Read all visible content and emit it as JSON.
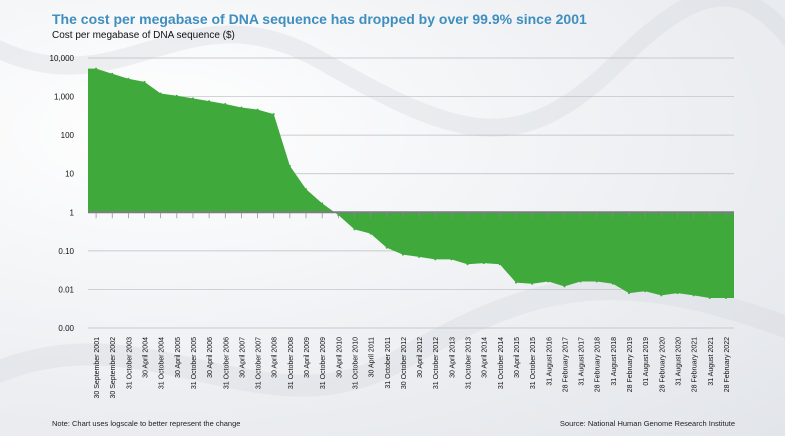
{
  "chart_data": {
    "type": "area",
    "title": "The cost per megabase of DNA sequence has dropped by over 99.9% since 2001",
    "ylabel": "Cost per megabase of DNA sequence ($)",
    "yscale": "log",
    "baseline": 1,
    "ylim": [
      0.001,
      10000
    ],
    "yticks": [
      10000,
      1000,
      100,
      10,
      1,
      0.1,
      0.01,
      0.001
    ],
    "ytick_labels": [
      "10,000",
      "1,000",
      "100",
      "10",
      "1",
      "0.10",
      "0.01",
      "0.00"
    ],
    "grid": true,
    "series_color": "#3faa3b",
    "x": [
      "30 September 2001",
      "30 September 2002",
      "31 October 2003",
      "30 April 2004",
      "31 October 2004",
      "30 April 2005",
      "31 October 2005",
      "30 April 2006",
      "31 October 2006",
      "30 April 2007",
      "31 October 2007",
      "30 April 2008",
      "31 October 2008",
      "30 April 2009",
      "31 October 2009",
      "30 April 2010",
      "31 October 2010",
      "30 April 2011",
      "31 October 2011",
      "30 October 2012",
      "30 April 2012",
      "31 October 2012",
      "30 April 2013",
      "31 October 2013",
      "30 April 2014",
      "31 October 2014",
      "30 April 2015",
      "31 October 2015",
      "31 August 2016",
      "28 February 2017",
      "31 August 2017",
      "28 February 2018",
      "31 August 2018",
      "28 February 2019",
      "01 August 2019",
      "28 February 2020",
      "31 August 2020",
      "28 February 2021",
      "31 August 2021",
      "28 February 2022"
    ],
    "values": [
      5300,
      3900,
      2900,
      2400,
      1200,
      1050,
      900,
      760,
      640,
      520,
      460,
      350,
      16,
      4,
      1.7,
      0.85,
      0.36,
      0.28,
      0.12,
      0.08,
      0.07,
      0.06,
      0.06,
      0.045,
      0.048,
      0.045,
      0.015,
      0.014,
      0.016,
      0.012,
      0.016,
      0.016,
      0.014,
      0.008,
      0.009,
      0.007,
      0.008,
      0.007,
      0.006,
      0.006
    ]
  },
  "note": "Note: Chart uses logscale to better represent the change",
  "source": "Source: National Human Genome Research Institute"
}
